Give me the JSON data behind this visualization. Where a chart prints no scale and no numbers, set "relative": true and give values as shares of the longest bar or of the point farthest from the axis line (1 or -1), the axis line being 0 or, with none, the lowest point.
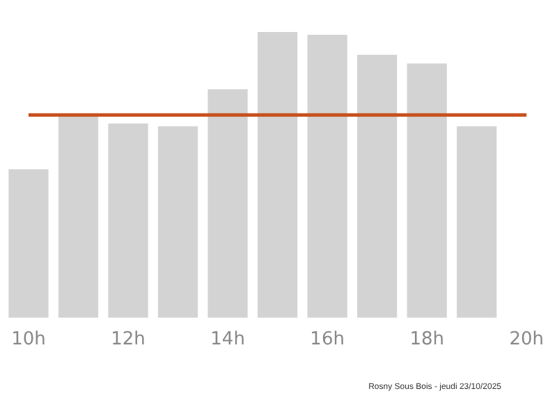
{
  "chart_data": {
    "type": "bar",
    "relative": true,
    "categories": [
      "10h",
      null,
      "12h",
      null,
      "14h",
      null,
      "16h",
      null,
      "18h",
      null,
      "20h"
    ],
    "values": [
      0.52,
      0.71,
      0.68,
      0.67,
      0.8,
      1,
      0.99,
      0.92,
      0.89,
      0.67,
      null
    ],
    "color": "#d3d3d3",
    "ref_lines": [
      {
        "axis": "y",
        "value": 0.71,
        "color": "#c8501e"
      }
    ],
    "annotations": [
      "Rosny Sous Bois - jeudi 23/10/2025"
    ],
    "grid": false,
    "legend": false
  }
}
